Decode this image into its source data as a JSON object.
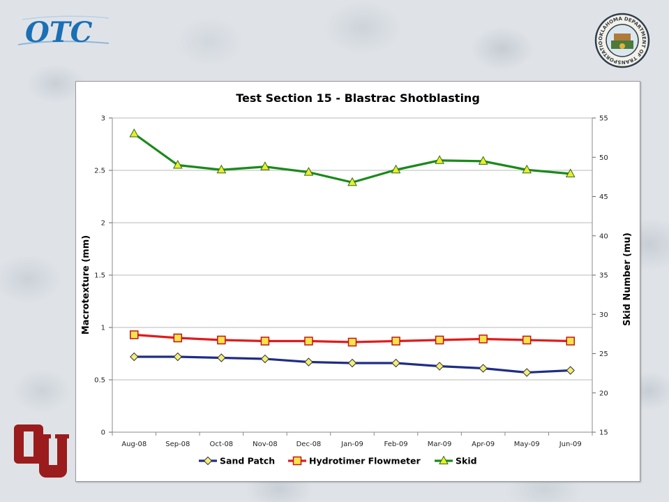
{
  "colors": {
    "otc_blue": "#1b6fb5",
    "ou_crimson": "#9b1c1c",
    "seal_ring": "#2f3d4d",
    "gridline": "#b8b8b8"
  },
  "logos": {
    "otc_text": "OTC",
    "seal_text": "OKLAHOMA DEPARTMENT OF TRANSPORTATION"
  },
  "chart_data": {
    "type": "line",
    "title": "Test Section 15 - Blastrac Shotblasting",
    "categories": [
      "Aug-08",
      "Sep-08",
      "Oct-08",
      "Nov-08",
      "Dec-08",
      "Jan-09",
      "Feb-09",
      "Mar-09",
      "Apr-09",
      "May-09",
      "Jun-09"
    ],
    "y_left": {
      "label": "Macrotexture (mm)",
      "range": [
        0,
        3
      ],
      "ticks": [
        "0",
        "0.5",
        "1",
        "1.5",
        "2",
        "2.5",
        "3"
      ]
    },
    "y_right": {
      "label": "Skid Number (mu)",
      "range": [
        15,
        55
      ],
      "ticks": [
        "15",
        "20",
        "25",
        "30",
        "35",
        "40",
        "45",
        "50",
        "55"
      ]
    },
    "grid": "horizontal",
    "legend_position": "bottom",
    "series": [
      {
        "name": "Sand Patch",
        "axis": "left",
        "color": "#1f2d86",
        "marker": "diamond",
        "marker_fill": "#f2ee7a",
        "values": [
          0.72,
          0.72,
          0.71,
          0.7,
          0.67,
          0.66,
          0.66,
          0.63,
          0.61,
          0.57,
          0.59
        ]
      },
      {
        "name": "Hydrotimer Flowmeter",
        "axis": "left",
        "color": "#e11b1b",
        "marker": "square",
        "marker_fill": "#f7e34a",
        "values": [
          0.93,
          0.9,
          0.88,
          0.87,
          0.87,
          0.86,
          0.87,
          0.88,
          0.89,
          0.88,
          0.87
        ]
      },
      {
        "name": "Skid",
        "axis": "right",
        "color": "#1a8a1a",
        "marker": "triangle",
        "marker_fill": "#e9ee2a",
        "values": [
          53.0,
          49.0,
          48.4,
          48.8,
          48.1,
          46.8,
          48.4,
          49.6,
          49.5,
          48.4,
          47.9
        ]
      }
    ]
  }
}
